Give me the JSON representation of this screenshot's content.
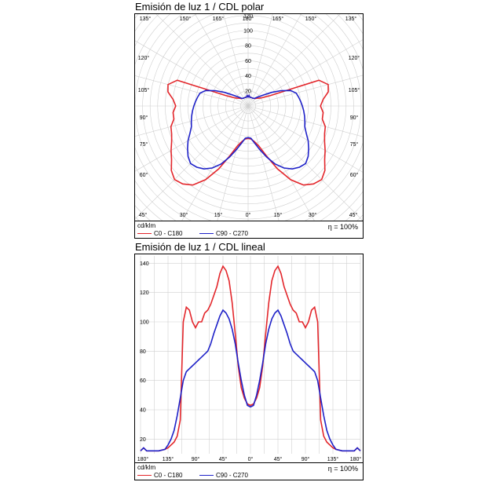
{
  "chart_data": [
    {
      "type": "polar",
      "title": "Emisión de luz 1 / CDL polar",
      "unit": "cd/klm",
      "efficiency": "η = 100%",
      "radial_ticks": [
        20,
        40,
        60,
        80,
        100,
        120
      ],
      "radial_labels": [
        "20",
        "40",
        "60",
        "80",
        "100",
        "120"
      ],
      "rmax": 125,
      "angle_labels": {
        "top": [
          "135°",
          "150°",
          "165°",
          "180°",
          "165°",
          "150°",
          "135°"
        ],
        "side": [
          "120°",
          "105°",
          "90°",
          "75°",
          "60°"
        ],
        "bottom": [
          "45°",
          "30°",
          "15°",
          "0°",
          "15°",
          "30°",
          "45°"
        ]
      },
      "series": [
        {
          "name": "C0 - C180",
          "color": "#e3262b",
          "angles": [
            0,
            5,
            10,
            15,
            20,
            25,
            30,
            35,
            40,
            45,
            50,
            55,
            60,
            65,
            70,
            75,
            80,
            85,
            90,
            95,
            100,
            105,
            110,
            115,
            120,
            125,
            130,
            135,
            140,
            150,
            160,
            170,
            175,
            180
          ],
          "values": [
            43,
            44,
            48,
            55,
            70,
            92,
            113,
            128,
            135,
            138,
            133,
            124,
            118,
            112,
            108,
            106,
            100,
            100,
            96,
            100,
            108,
            110,
            100,
            33,
            22,
            18,
            16,
            14,
            13,
            12,
            12,
            12,
            14,
            12
          ]
        },
        {
          "name": "C90 - C270",
          "color": "#1f22c8",
          "angles": [
            0,
            5,
            10,
            15,
            20,
            25,
            30,
            35,
            40,
            45,
            50,
            55,
            60,
            65,
            70,
            75,
            80,
            85,
            90,
            95,
            100,
            105,
            110,
            115,
            120,
            125,
            130,
            135,
            140,
            150,
            160,
            170,
            175,
            180
          ],
          "values": [
            42,
            43,
            50,
            60,
            72,
            85,
            95,
            102,
            106,
            108,
            104,
            98,
            92,
            85,
            80,
            78,
            76,
            74,
            72,
            70,
            68,
            66,
            60,
            48,
            36,
            26,
            20,
            16,
            13,
            12,
            12,
            12,
            14,
            12
          ]
        }
      ]
    },
    {
      "type": "line",
      "title": "Emisión de luz 1 / CDL lineal",
      "unit": "cd/klm",
      "efficiency": "η = 100%",
      "y_ticks": [
        20,
        40,
        60,
        80,
        100,
        120,
        140
      ],
      "y_labels": [
        "20",
        "40",
        "60",
        "80",
        "100",
        "120",
        "140"
      ],
      "ylim": [
        10,
        145
      ],
      "x_ticks": [
        -180,
        -135,
        -90,
        -45,
        0,
        45,
        90,
        135,
        180
      ],
      "x_labels": [
        "180°",
        "135°",
        "90°",
        "45°",
        "0°",
        "45°",
        "90°",
        "135°",
        "180°"
      ],
      "series": [
        {
          "name": "C0 - C180",
          "color": "#e3262b",
          "x": [
            0,
            5,
            10,
            15,
            20,
            25,
            30,
            35,
            40,
            45,
            50,
            55,
            60,
            65,
            70,
            75,
            80,
            85,
            90,
            95,
            100,
            105,
            110,
            115,
            120,
            125,
            130,
            135,
            140,
            150,
            160,
            170,
            175,
            180
          ],
          "y": [
            43,
            44,
            48,
            55,
            70,
            92,
            113,
            128,
            135,
            138,
            133,
            124,
            118,
            112,
            108,
            106,
            100,
            100,
            96,
            100,
            108,
            110,
            100,
            33,
            22,
            18,
            16,
            14,
            13,
            12,
            12,
            12,
            14,
            12
          ]
        },
        {
          "name": "C90 - C270",
          "color": "#1f22c8",
          "x": [
            0,
            5,
            10,
            15,
            20,
            25,
            30,
            35,
            40,
            45,
            50,
            55,
            60,
            65,
            70,
            75,
            80,
            85,
            90,
            95,
            100,
            105,
            110,
            115,
            120,
            125,
            130,
            135,
            140,
            150,
            160,
            170,
            175,
            180
          ],
          "y": [
            42,
            43,
            50,
            60,
            72,
            85,
            95,
            102,
            106,
            108,
            104,
            98,
            92,
            85,
            80,
            78,
            76,
            74,
            72,
            70,
            68,
            66,
            60,
            48,
            36,
            26,
            20,
            16,
            13,
            12,
            12,
            12,
            14,
            12
          ]
        }
      ]
    }
  ]
}
